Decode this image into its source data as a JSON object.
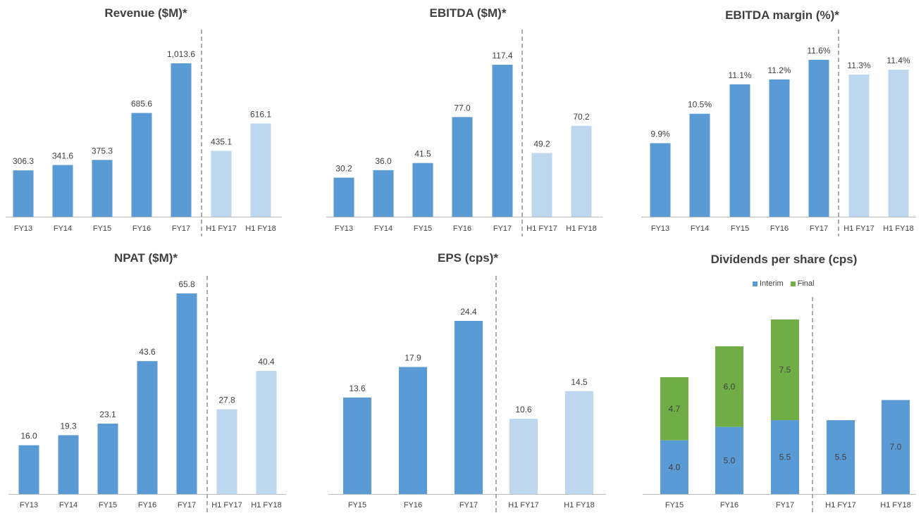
{
  "colors": {
    "actual": "#5b9bd5",
    "half_year": "#bdd7ee",
    "interim": "#5b9bd5",
    "final": "#70ad47",
    "axis": "#bfbfbf",
    "divider": "#808080",
    "text": "#404040"
  },
  "legend": {
    "interim": "Interim",
    "final": "Final"
  },
  "chart_data": [
    {
      "id": "revenue",
      "type": "bar",
      "title": "Revenue ($M)*",
      "categories": [
        "FY13",
        "FY14",
        "FY15",
        "FY16",
        "FY17",
        "H1 FY17",
        "H1 FY18"
      ],
      "values": [
        306.3,
        341.6,
        375.3,
        685.6,
        1013.6,
        435.1,
        616.1
      ],
      "labels": [
        "306.3",
        "341.6",
        "375.3",
        "685.6",
        "1,013.6",
        "435.1",
        "616.1"
      ],
      "half_year_split": 5,
      "ylim": [
        0,
        1013.6
      ],
      "grid": false
    },
    {
      "id": "ebitda",
      "type": "bar",
      "title": "EBITDA ($M)*",
      "categories": [
        "FY13",
        "FY14",
        "FY15",
        "FY16",
        "FY17",
        "H1 FY17",
        "H1 FY18"
      ],
      "values": [
        30.2,
        36.0,
        41.5,
        77.0,
        117.4,
        49.2,
        70.2
      ],
      "labels": [
        "30.2",
        "36.0",
        "41.5",
        "77.0",
        "117.4",
        "49.2",
        "70.2"
      ],
      "half_year_split": 5,
      "ylim": [
        0,
        117.4
      ],
      "grid": false
    },
    {
      "id": "ebitda-margin",
      "type": "bar",
      "title": "EBITDA margin (%)*",
      "categories": [
        "FY13",
        "FY14",
        "FY15",
        "FY16",
        "FY17",
        "H1 FY17",
        "H1 FY18"
      ],
      "values": [
        9.9,
        10.5,
        11.1,
        11.2,
        11.6,
        11.3,
        11.4
      ],
      "labels": [
        "9.9%",
        "10.5%",
        "11.1%",
        "11.2%",
        "11.6%",
        "11.3%",
        "11.4%"
      ],
      "half_year_split": 5,
      "ylim": [
        8.4,
        11.6
      ],
      "grid": false
    },
    {
      "id": "npat",
      "type": "bar",
      "title": "NPAT ($M)*",
      "categories": [
        "FY13",
        "FY14",
        "FY15",
        "FY16",
        "FY17",
        "H1 FY17",
        "H1 FY18"
      ],
      "values": [
        16.0,
        19.3,
        23.1,
        43.6,
        65.8,
        27.8,
        40.4
      ],
      "labels": [
        "16.0",
        "19.3",
        "23.1",
        "43.6",
        "65.8",
        "27.8",
        "40.4"
      ],
      "half_year_split": 5,
      "ylim": [
        0,
        65.8
      ],
      "grid": false
    },
    {
      "id": "eps",
      "type": "bar",
      "title": "EPS (cps)*",
      "categories": [
        "FY15",
        "FY16",
        "FY17",
        "H1 FY17",
        "H1 FY18"
      ],
      "values": [
        13.6,
        17.9,
        24.4,
        10.6,
        14.5
      ],
      "labels": [
        "13.6",
        "17.9",
        "24.4",
        "10.6",
        "14.5"
      ],
      "half_year_split": 3,
      "ylim": [
        0,
        24.4
      ],
      "grid": false
    },
    {
      "id": "dps",
      "type": "stacked-bar",
      "title": "Dividends per share (cps)",
      "categories": [
        "FY15",
        "FY16",
        "FY17",
        "H1 FY17",
        "H1 FY18"
      ],
      "series": [
        {
          "name": "Interim",
          "values": [
            4.0,
            5.0,
            5.5,
            5.5,
            7.0
          ],
          "labels": [
            "4.0",
            "5.0",
            "5.5",
            "5.5",
            "7.0"
          ]
        },
        {
          "name": "Final",
          "values": [
            4.7,
            6.0,
            7.5,
            null,
            null
          ],
          "labels": [
            "4.7",
            "6.0",
            "7.5",
            "",
            ""
          ]
        }
      ],
      "half_year_split": 3,
      "ylim": [
        0,
        13.0
      ],
      "legend_position": "top",
      "grid": false
    }
  ]
}
